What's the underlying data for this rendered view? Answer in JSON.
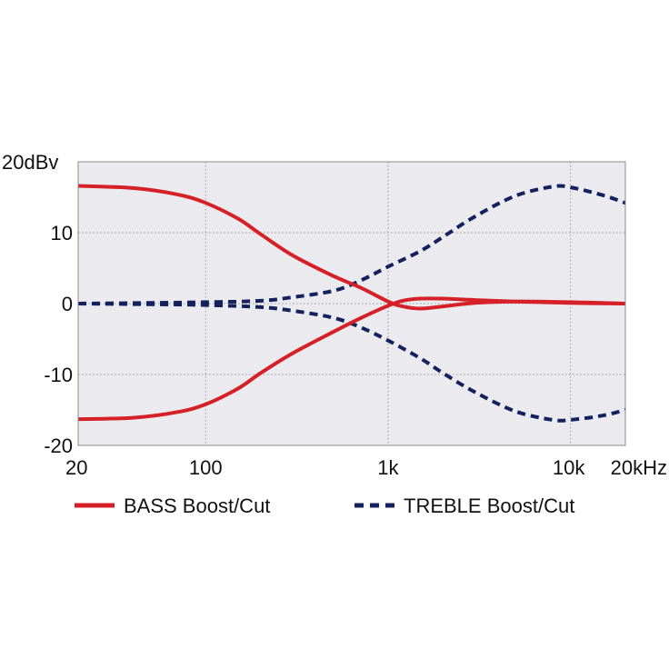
{
  "chart_data": {
    "type": "line",
    "title": "",
    "xlabel": "",
    "ylabel": "",
    "x_scale": "log",
    "xlim": [
      20,
      20000
    ],
    "ylim": [
      -20,
      20
    ],
    "grid": true,
    "legend_placement": "bottom",
    "plot_background": "#ebebef",
    "x_ticks": [
      {
        "value": 20,
        "label": "20"
      },
      {
        "value": 100,
        "label": "100"
      },
      {
        "value": 1000,
        "label": "1k"
      },
      {
        "value": 10000,
        "label": "10k"
      },
      {
        "value": 20000,
        "label": "20kHz"
      }
    ],
    "y_ticks": [
      {
        "value": 20,
        "label": "20dBv"
      },
      {
        "value": 10,
        "label": "10"
      },
      {
        "value": 0,
        "label": "0"
      },
      {
        "value": -10,
        "label": "-10"
      },
      {
        "value": -20,
        "label": "-20"
      }
    ],
    "legend": [
      {
        "label": "BASS Boost/Cut",
        "color": "#d62027",
        "dash": "solid"
      },
      {
        "label": "TREBLE Boost/Cut",
        "color": "#14215c",
        "dash": "dashed"
      }
    ],
    "series": [
      {
        "group": "BASS Boost/Cut",
        "color": "#d62027",
        "dash": "solid",
        "points": [
          [
            20,
            16.6
          ],
          [
            40,
            16.3
          ],
          [
            70,
            15.4
          ],
          [
            100,
            14.2
          ],
          [
            150,
            12
          ],
          [
            200,
            9.8
          ],
          [
            300,
            6.8
          ],
          [
            500,
            3.9
          ],
          [
            700,
            2.3
          ],
          [
            1000,
            0.3
          ],
          [
            1200,
            -0.4
          ],
          [
            1500,
            -0.7
          ],
          [
            2000,
            -0.4
          ],
          [
            3000,
            0.1
          ],
          [
            5000,
            0.3
          ],
          [
            10000,
            0.2
          ],
          [
            20000,
            0
          ]
        ]
      },
      {
        "group": "BASS Boost/Cut",
        "color": "#d62027",
        "dash": "solid",
        "points": [
          [
            20,
            -16.3
          ],
          [
            40,
            -16.1
          ],
          [
            70,
            -15.3
          ],
          [
            100,
            -14.2
          ],
          [
            150,
            -12
          ],
          [
            200,
            -9.8
          ],
          [
            300,
            -7
          ],
          [
            500,
            -4
          ],
          [
            700,
            -2.1
          ],
          [
            1000,
            -0.3
          ],
          [
            1200,
            0.4
          ],
          [
            1500,
            0.7
          ],
          [
            2000,
            0.7
          ],
          [
            3000,
            0.5
          ],
          [
            5000,
            0.3
          ],
          [
            10000,
            0.1
          ],
          [
            20000,
            0
          ]
        ]
      },
      {
        "group": "TREBLE Boost/Cut",
        "color": "#14215c",
        "dash": "dashed",
        "points": [
          [
            20,
            0
          ],
          [
            50,
            0.1
          ],
          [
            100,
            0.2
          ],
          [
            200,
            0.4
          ],
          [
            300,
            0.9
          ],
          [
            500,
            1.8
          ],
          [
            700,
            3.2
          ],
          [
            1000,
            5.2
          ],
          [
            1500,
            7.4
          ],
          [
            2000,
            9.4
          ],
          [
            3000,
            12.3
          ],
          [
            5000,
            15.2
          ],
          [
            8000,
            16.5
          ],
          [
            10000,
            16.4
          ],
          [
            15000,
            15.3
          ],
          [
            20000,
            14.2
          ]
        ]
      },
      {
        "group": "TREBLE Boost/Cut",
        "color": "#14215c",
        "dash": "dashed",
        "points": [
          [
            20,
            0
          ],
          [
            50,
            -0.1
          ],
          [
            100,
            -0.2
          ],
          [
            200,
            -0.5
          ],
          [
            300,
            -1
          ],
          [
            500,
            -2
          ],
          [
            700,
            -3.3
          ],
          [
            1000,
            -5.2
          ],
          [
            1500,
            -7.7
          ],
          [
            2000,
            -9.8
          ],
          [
            3000,
            -12.5
          ],
          [
            5000,
            -15.2
          ],
          [
            8000,
            -16.4
          ],
          [
            10000,
            -16.4
          ],
          [
            15000,
            -15.8
          ],
          [
            20000,
            -15
          ]
        ]
      }
    ]
  }
}
